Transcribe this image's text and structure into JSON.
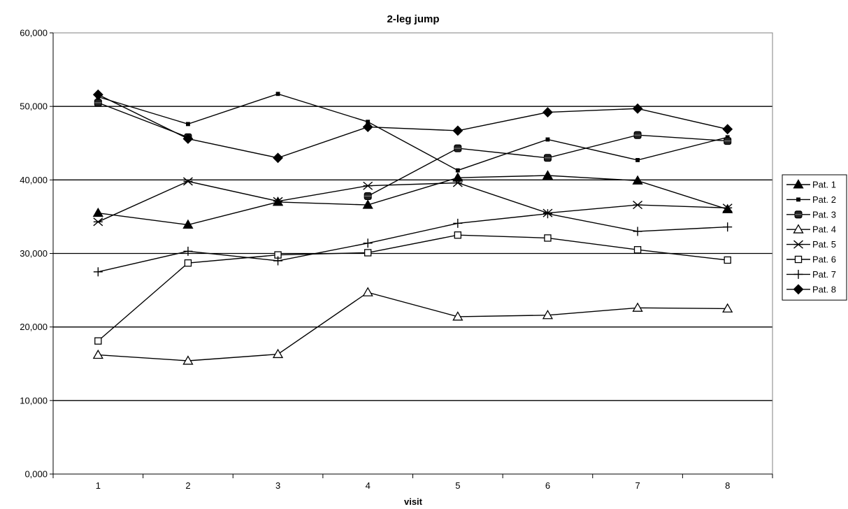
{
  "chart_data": {
    "type": "line",
    "title": "2-leg jump",
    "xlabel": "visit",
    "ylabel": "",
    "x": [
      1,
      2,
      3,
      4,
      5,
      6,
      7,
      8
    ],
    "categories": [
      "1",
      "2",
      "3",
      "4",
      "5",
      "6",
      "7",
      "8"
    ],
    "ylim": [
      0,
      60
    ],
    "yticks": [
      "0,000",
      "10,000",
      "20,000",
      "30,000",
      "40,000",
      "50,000",
      "60,000"
    ],
    "ytick_values": [
      0,
      10,
      20,
      30,
      40,
      50,
      60
    ],
    "grid": true,
    "legend_position": "right",
    "series": [
      {
        "name": "Pat. 1",
        "marker": "triangle-filled",
        "values": [
          35.5,
          33.9,
          37.0,
          36.6,
          40.3,
          40.6,
          39.9,
          36.0
        ]
      },
      {
        "name": "Pat. 2",
        "marker": "square-small-filled",
        "values": [
          51.3,
          47.6,
          51.7,
          47.9,
          41.3,
          45.5,
          42.7,
          45.8
        ]
      },
      {
        "name": "Pat. 3",
        "marker": "square-rounded-filled",
        "values": [
          50.5,
          45.8,
          null,
          37.8,
          44.3,
          43.0,
          46.1,
          45.3
        ]
      },
      {
        "name": "Pat. 4",
        "marker": "triangle-open",
        "values": [
          16.2,
          15.4,
          16.3,
          24.7,
          21.4,
          21.6,
          22.6,
          22.5
        ]
      },
      {
        "name": "Pat. 5",
        "marker": "asterisk",
        "values": [
          34.3,
          39.8,
          37.1,
          39.2,
          39.6,
          35.5,
          36.6,
          36.2
        ]
      },
      {
        "name": "Pat. 6",
        "marker": "square-open",
        "values": [
          18.1,
          28.7,
          29.8,
          30.1,
          32.5,
          32.1,
          30.5,
          29.1
        ]
      },
      {
        "name": "Pat. 7",
        "marker": "plus",
        "values": [
          27.5,
          30.3,
          29.0,
          31.4,
          34.1,
          35.4,
          33.0,
          33.6
        ]
      },
      {
        "name": "Pat. 8",
        "marker": "diamond-filled",
        "values": [
          51.6,
          45.6,
          43.0,
          47.2,
          46.7,
          49.2,
          49.7,
          46.9
        ]
      }
    ]
  }
}
